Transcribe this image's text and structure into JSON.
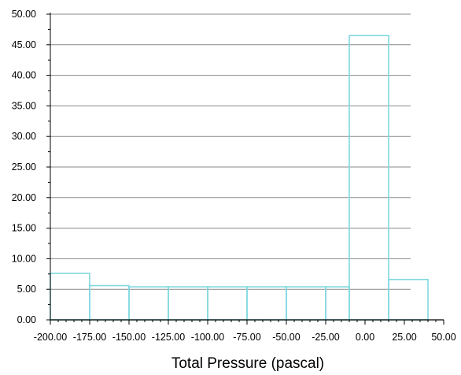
{
  "chart_data": {
    "type": "bar",
    "xlabel": "Total Pressure (pascal)",
    "ylabel": "",
    "ylim": [
      0,
      50
    ],
    "xlim": [
      -200,
      50
    ],
    "ytick_labels": [
      "0.00",
      "5.00",
      "10.00",
      "15.00",
      "20.00",
      "25.00",
      "30.00",
      "35.00",
      "40.00",
      "45.00",
      "50.00"
    ],
    "xtick_labels": [
      "-200.00",
      "-175.00",
      "-150.00",
      "-125.00",
      "-100.00",
      "-75.00",
      "-50.00",
      "-25.00",
      "0.00",
      "25.00",
      "50.00"
    ],
    "grid": true,
    "bar_color": "#7fd8e0",
    "bins": [
      {
        "start": -200.0,
        "end": -175.0,
        "value": 7.6
      },
      {
        "start": -175.0,
        "end": -150.0,
        "value": 5.6
      },
      {
        "start": -150.0,
        "end": -125.0,
        "value": 5.4
      },
      {
        "start": -125.0,
        "end": -100.0,
        "value": 5.4
      },
      {
        "start": -100.0,
        "end": -75.0,
        "value": 5.4
      },
      {
        "start": -75.0,
        "end": -50.0,
        "value": 5.4
      },
      {
        "start": -50.0,
        "end": -25.0,
        "value": 5.4
      },
      {
        "start": -25.0,
        "end": -10.0,
        "value": 5.4
      },
      {
        "start": -10.0,
        "end": 15.0,
        "value": 46.5
      },
      {
        "start": 15.0,
        "end": 40.0,
        "value": 6.6
      }
    ]
  }
}
